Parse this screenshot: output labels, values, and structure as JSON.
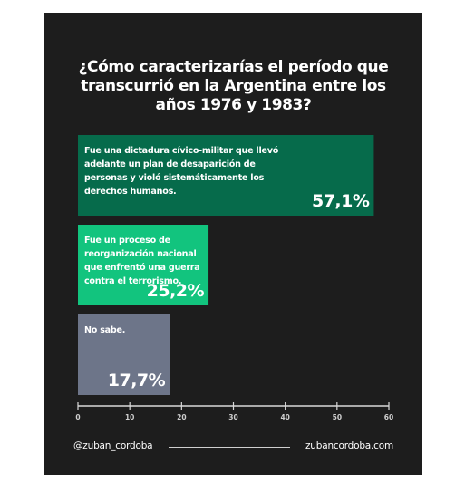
{
  "colors": {
    "background": "#1d1d1d",
    "text": "#ffffff",
    "axis": "#d9d9d9"
  },
  "chart_data": {
    "type": "bar",
    "orientation": "horizontal",
    "title": "¿Cómo caracterizarías el período que transcurrió en la Argentina entre los años 1976 y 1983?",
    "xlim": [
      0,
      60
    ],
    "xticks": [
      0,
      10,
      20,
      30,
      40,
      50,
      60
    ],
    "grid": false,
    "bars": [
      {
        "category_lines": [
          "Fue una dictadura cívico-militar que llevó",
          "adelante un plan de desaparición de",
          "personas y violó sistemáticamente los",
          "derechos humanos."
        ],
        "value": 57.1,
        "value_label": "57,1%",
        "color": "#066b4b"
      },
      {
        "category_lines": [
          "Fue un proceso de",
          "reorganización nacional",
          "que enfrentó una guerra",
          "contra el terrorismo."
        ],
        "value": 25.2,
        "value_label": "25,2%",
        "color": "#12c47e"
      },
      {
        "category_lines": [
          "No sabe."
        ],
        "value": 17.7,
        "value_label": "17,7%",
        "color": "#6d7589"
      }
    ]
  },
  "footer": {
    "handle": "@zuban_cordoba",
    "website": "zubancordoba.com"
  }
}
